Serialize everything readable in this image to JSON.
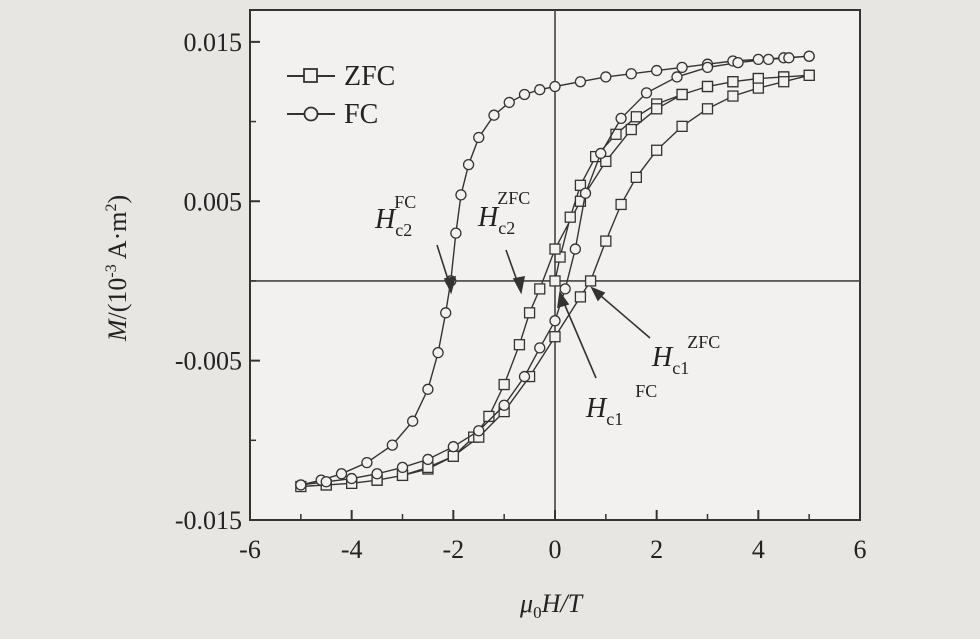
{
  "chart_data": {
    "type": "line",
    "title": "",
    "xlabel": "μ0H/T",
    "xlabel_parts": {
      "mu": "μ",
      "sub": "0",
      "rest": "H/T"
    },
    "ylabel": "M/(10-3 A·m2)",
    "ylabel_parts": {
      "a": "M",
      "b": "/(10",
      "exp": "-3",
      "c": " A·m",
      "sq": "2",
      "d": ")"
    },
    "xlim": [
      -6,
      6
    ],
    "ylim": [
      -0.015,
      0.017
    ],
    "x_ticks": [
      -6,
      -4,
      -2,
      0,
      2,
      4,
      6
    ],
    "x_tick_labels": [
      "-6",
      "-4",
      "-2",
      "0",
      "2",
      "4",
      "6"
    ],
    "y_ticks": [
      0.015,
      0.005,
      -0.005,
      -0.015
    ],
    "y_tick_labels": [
      "0.015",
      "0.005",
      "-0.005",
      "-0.015"
    ],
    "grid": false,
    "zero_lines": true,
    "legend": "top-left",
    "series": [
      {
        "name": "ZFC",
        "marker": "square",
        "x": [
          0.0,
          0.1,
          0.3,
          0.5,
          0.8,
          1.2,
          1.6,
          2.0,
          2.5,
          3.0,
          3.5,
          4.0,
          4.5,
          5.0,
          4.5,
          4.0,
          3.5,
          3.0,
          2.5,
          2.0,
          1.5,
          1.0,
          0.5,
          0.0,
          -0.3,
          -0.5,
          -0.7,
          -1.0,
          -1.3,
          -1.6,
          -2.0,
          -2.5,
          -3.0,
          -3.5,
          -4.0,
          -4.5,
          -5.0,
          -4.5,
          -4.0,
          -3.5,
          -3.0,
          -2.5,
          -2.0,
          -1.5,
          -1.0,
          -0.5,
          0.0,
          0.5,
          0.7,
          1.0,
          1.3,
          1.6,
          2.0,
          2.5,
          3.0,
          3.5,
          4.0,
          4.5,
          5.0
        ],
        "y": [
          0.0,
          0.0015,
          0.004,
          0.006,
          0.0078,
          0.0092,
          0.0103,
          0.0111,
          0.0117,
          0.0122,
          0.0125,
          0.0127,
          0.0128,
          0.0129,
          0.0128,
          0.0127,
          0.0125,
          0.0122,
          0.0117,
          0.0108,
          0.0095,
          0.0075,
          0.005,
          0.002,
          -0.0005,
          -0.002,
          -0.004,
          -0.0065,
          -0.0085,
          -0.0098,
          -0.011,
          -0.0118,
          -0.0122,
          -0.0125,
          -0.0127,
          -0.0128,
          -0.0129,
          -0.0128,
          -0.0127,
          -0.0125,
          -0.0122,
          -0.0117,
          -0.011,
          -0.0098,
          -0.0082,
          -0.006,
          -0.0035,
          -0.001,
          0.0,
          0.0025,
          0.0048,
          0.0065,
          0.0082,
          0.0097,
          0.0108,
          0.0116,
          0.0121,
          0.0125,
          0.0129
        ]
      },
      {
        "name": "FC",
        "marker": "circle",
        "x": [
          5.0,
          4.5,
          4.0,
          3.5,
          3.0,
          2.5,
          2.0,
          1.5,
          1.0,
          0.5,
          0.0,
          -0.3,
          -0.6,
          -0.9,
          -1.2,
          -1.5,
          -1.7,
          -1.85,
          -1.95,
          -2.05,
          -2.15,
          -2.3,
          -2.5,
          -2.8,
          -3.2,
          -3.7,
          -4.2,
          -4.6,
          -5.0,
          -4.5,
          -4.0,
          -3.5,
          -3.0,
          -2.5,
          -2.0,
          -1.5,
          -1.0,
          -0.6,
          -0.3,
          0.0,
          0.2,
          0.4,
          0.6,
          0.9,
          1.3,
          1.8,
          2.4,
          3.0,
          3.6,
          4.2,
          4.6,
          5.0
        ],
        "y": [
          0.0141,
          0.014,
          0.0139,
          0.0138,
          0.0136,
          0.0134,
          0.0132,
          0.013,
          0.0128,
          0.0125,
          0.0122,
          0.012,
          0.0117,
          0.0112,
          0.0104,
          0.009,
          0.0073,
          0.0054,
          0.003,
          0.0,
          -0.002,
          -0.0045,
          -0.0068,
          -0.0088,
          -0.0103,
          -0.0114,
          -0.0121,
          -0.0125,
          -0.0128,
          -0.0126,
          -0.0124,
          -0.0121,
          -0.0117,
          -0.0112,
          -0.0104,
          -0.0094,
          -0.0078,
          -0.006,
          -0.0042,
          -0.0025,
          -0.0005,
          0.002,
          0.0055,
          0.008,
          0.0102,
          0.0118,
          0.0128,
          0.0134,
          0.0137,
          0.0139,
          0.014,
          0.0141
        ]
      }
    ],
    "annotations": [
      {
        "base": "H",
        "sub": "c2",
        "sup": "FC"
      },
      {
        "base": "H",
        "sub": "c2",
        "sup": "ZFC"
      },
      {
        "base": "H",
        "sub": "c1",
        "sup": "ZFC"
      },
      {
        "base": "H",
        "sub": "c1",
        "sup": "FC"
      }
    ]
  }
}
